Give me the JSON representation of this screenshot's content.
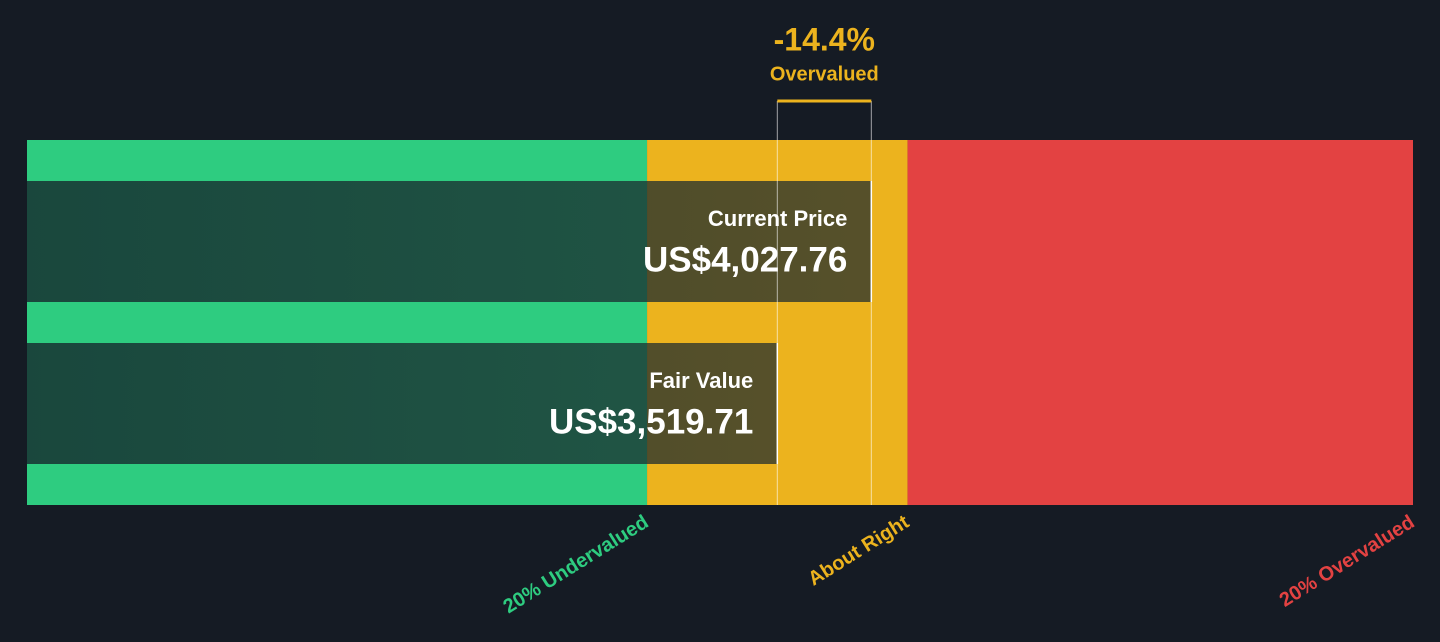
{
  "chart_data": {
    "type": "valuation",
    "categories": [
      "Current Price",
      "Fair Value"
    ],
    "values": [
      4027.76,
      3519.71
    ],
    "value_labels": [
      "US$4,027.76",
      "US$3,519.71"
    ],
    "difference": {
      "value": -14.4,
      "label": "-14.4%",
      "text": "Overvalued"
    },
    "zones": [
      {
        "label": "20% Undervalued",
        "color": "#2ecc80",
        "end": 2815.77
      },
      {
        "label": "About Right",
        "color": "#ecb31e",
        "end": 4223.65
      },
      {
        "label": "20% Overvalued",
        "color": "#e34242"
      }
    ],
    "xlim": [
      -535,
      6955
    ]
  }
}
